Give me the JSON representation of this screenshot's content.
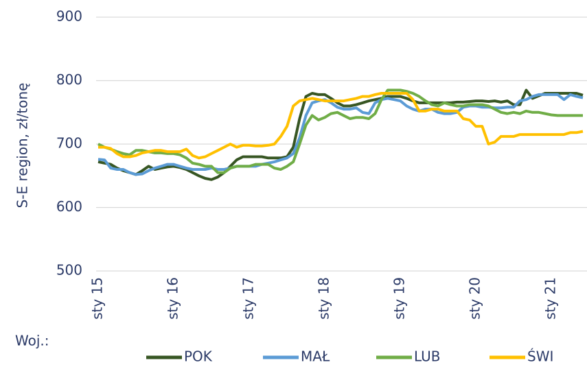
{
  "chart_data": {
    "type": "line",
    "y_label": "S-E region, zł/tonę",
    "legend_title": "Woj.:",
    "legend": "bottom",
    "grid": true,
    "categories": [
      "sty 15",
      null,
      null,
      null,
      null,
      null,
      null,
      null,
      null,
      null,
      null,
      null,
      "sty 16",
      null,
      null,
      null,
      null,
      null,
      null,
      null,
      null,
      null,
      null,
      null,
      "sty 17",
      null,
      null,
      null,
      null,
      null,
      null,
      null,
      null,
      null,
      null,
      null,
      "sty 18",
      null,
      null,
      null,
      null,
      null,
      null,
      null,
      null,
      null,
      null,
      null,
      "sty 19",
      null,
      null,
      null,
      null,
      null,
      null,
      null,
      null,
      null,
      null,
      null,
      "sty 20",
      null,
      null,
      null,
      null,
      null,
      null,
      null,
      null,
      null,
      null,
      null,
      "sty 21",
      null,
      null,
      null,
      null,
      null
    ],
    "ylim": [
      500,
      900
    ],
    "yticks": [
      500,
      600,
      700,
      800,
      900
    ],
    "series": [
      {
        "name": "POK",
        "color": "#375623",
        "values": [
          672,
          670,
          668,
          662,
          658,
          655,
          652,
          658,
          665,
          660,
          662,
          664,
          665,
          663,
          660,
          655,
          650,
          646,
          644,
          648,
          655,
          665,
          675,
          680,
          680,
          680,
          680,
          678,
          678,
          678,
          680,
          695,
          740,
          775,
          780,
          778,
          778,
          772,
          765,
          760,
          760,
          762,
          765,
          768,
          770,
          772,
          775,
          775,
          775,
          772,
          768,
          765,
          765,
          765,
          765,
          765,
          765,
          766,
          766,
          767,
          768,
          768,
          767,
          768,
          766,
          768,
          762,
          762,
          785,
          772,
          776,
          780,
          780,
          780,
          780,
          780,
          780,
          777
        ]
      },
      {
        "name": "MAŁ",
        "color": "#5b9bd5",
        "values": [
          676,
          675,
          662,
          660,
          660,
          655,
          652,
          653,
          658,
          662,
          665,
          668,
          668,
          665,
          662,
          660,
          660,
          660,
          662,
          660,
          660,
          662,
          665,
          665,
          665,
          665,
          668,
          670,
          672,
          675,
          678,
          685,
          710,
          745,
          765,
          768,
          770,
          765,
          758,
          755,
          755,
          757,
          750,
          748,
          765,
          770,
          772,
          770,
          768,
          760,
          755,
          752,
          755,
          755,
          750,
          748,
          748,
          750,
          758,
          760,
          760,
          758,
          758,
          757,
          757,
          758,
          758,
          768,
          770,
          775,
          778,
          778,
          778,
          778,
          770,
          778,
          775,
          773
        ]
      },
      {
        "name": "LUB",
        "color": "#70ad47",
        "values": [
          700,
          695,
          692,
          688,
          685,
          683,
          690,
          690,
          688,
          686,
          686,
          685,
          685,
          683,
          678,
          670,
          668,
          665,
          665,
          655,
          655,
          662,
          665,
          665,
          665,
          668,
          668,
          668,
          662,
          660,
          665,
          672,
          700,
          730,
          745,
          738,
          742,
          748,
          750,
          745,
          740,
          742,
          742,
          740,
          748,
          770,
          785,
          785,
          785,
          783,
          780,
          775,
          768,
          762,
          760,
          765,
          762,
          760,
          760,
          762,
          762,
          762,
          760,
          755,
          750,
          748,
          750,
          748,
          752,
          750,
          750,
          748,
          746,
          745,
          745,
          745,
          745,
          745
        ]
      },
      {
        "name": "ŚWI",
        "color": "#ffc000",
        "values": [
          695,
          695,
          693,
          685,
          680,
          680,
          682,
          686,
          688,
          690,
          690,
          688,
          688,
          688,
          692,
          682,
          678,
          680,
          685,
          690,
          695,
          700,
          695,
          698,
          698,
          697,
          697,
          698,
          700,
          712,
          728,
          760,
          768,
          770,
          772,
          770,
          768,
          768,
          768,
          768,
          770,
          772,
          775,
          775,
          778,
          780,
          780,
          780,
          780,
          780,
          770,
          752,
          752,
          755,
          755,
          752,
          752,
          752,
          740,
          738,
          728,
          728,
          700,
          703,
          712,
          712,
          712,
          715,
          715,
          715,
          715,
          715,
          715,
          715,
          715,
          718,
          718,
          720
        ]
      }
    ]
  }
}
